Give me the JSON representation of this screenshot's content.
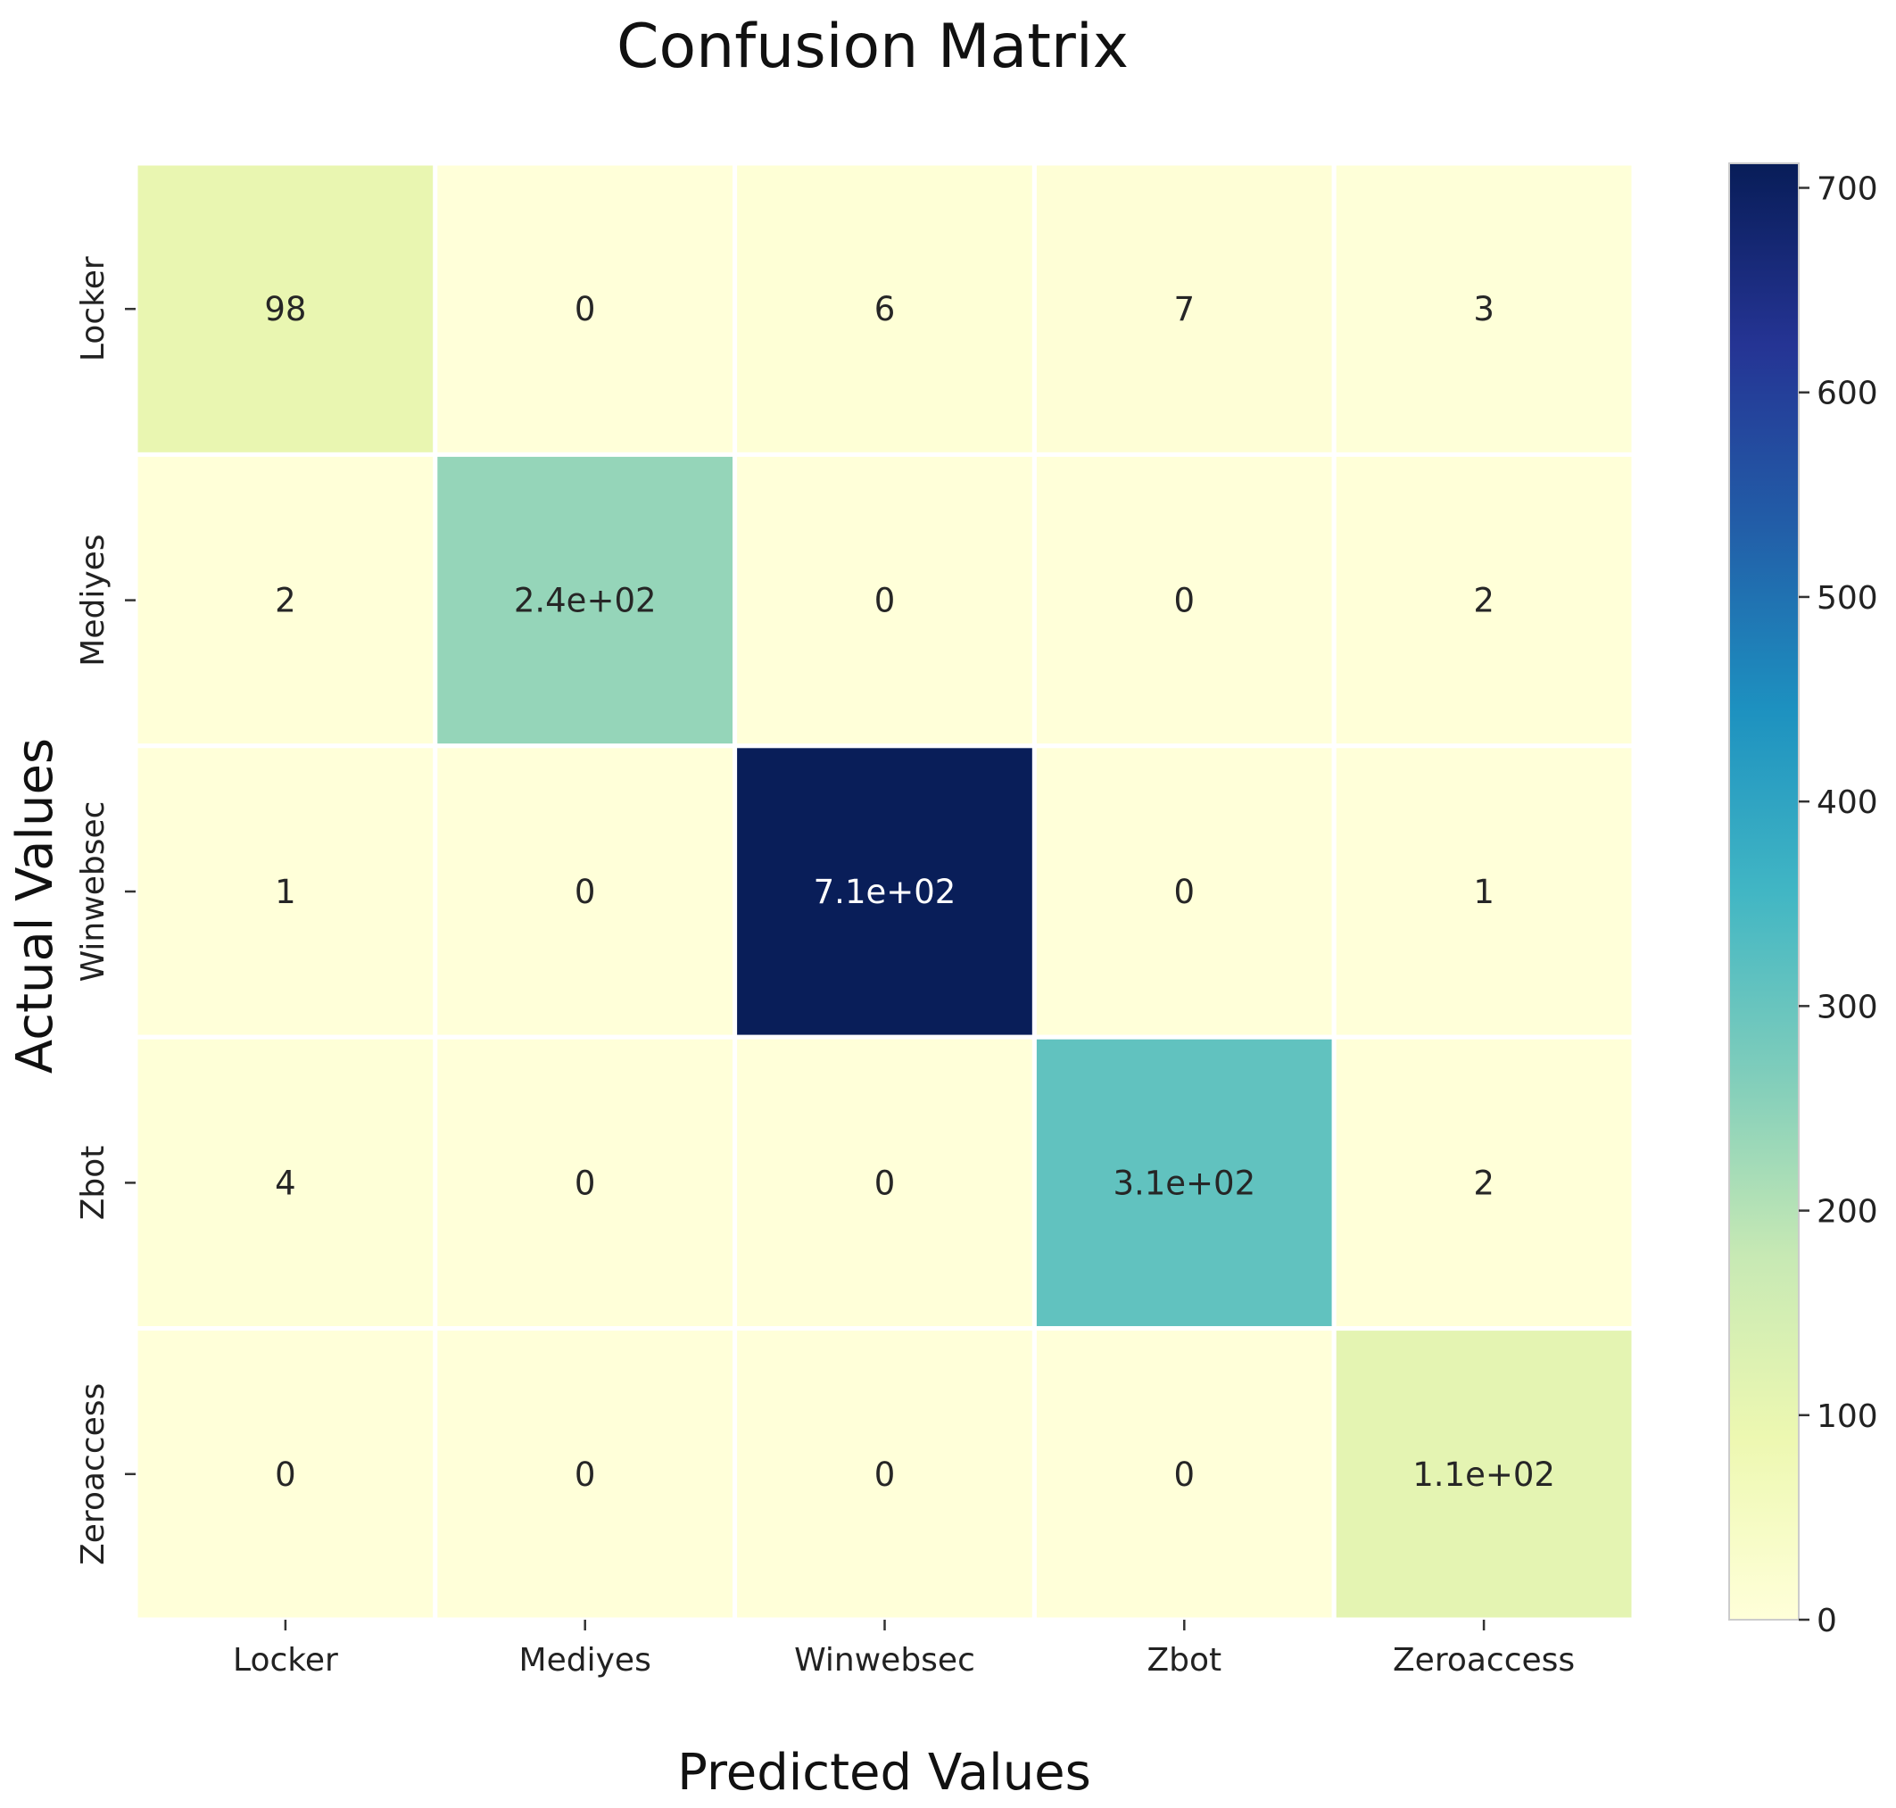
{
  "chart_data": {
    "type": "heatmap",
    "title": "Confusion Matrix",
    "xlabel": "Predicted Values",
    "ylabel": "Actual Values",
    "x_categories": [
      "Locker",
      "Mediyes",
      "Winwebsec",
      "Zbot",
      "Zeroaccess"
    ],
    "y_categories": [
      "Locker",
      "Mediyes",
      "Winwebsec",
      "Zbot",
      "Zeroaccess"
    ],
    "values": [
      [
        98,
        0,
        6,
        7,
        3
      ],
      [
        2,
        240,
        0,
        0,
        2
      ],
      [
        1,
        0,
        710,
        0,
        1
      ],
      [
        4,
        0,
        0,
        310,
        2
      ],
      [
        0,
        0,
        0,
        0,
        110
      ]
    ],
    "cell_labels": [
      [
        "98",
        "0",
        "6",
        "7",
        "3"
      ],
      [
        "2",
        "2.4e+02",
        "0",
        "0",
        "2"
      ],
      [
        "1",
        "0",
        "7.1e+02",
        "0",
        "1"
      ],
      [
        "4",
        "0",
        "0",
        "3.1e+02",
        "2"
      ],
      [
        "0",
        "0",
        "0",
        "0",
        "1.1e+02"
      ]
    ],
    "colormap": "YlGnBu",
    "colorbar": {
      "range": [
        0,
        712
      ],
      "ticks": [
        0,
        100,
        200,
        300,
        400,
        500,
        600,
        700
      ],
      "tick_labels": [
        "0",
        "100",
        "200",
        "300",
        "400",
        "500",
        "600",
        "700"
      ]
    },
    "colormap_stops": [
      "#ffffd9",
      "#edf8b1",
      "#c7e9b4",
      "#7fcdbb",
      "#41b6c4",
      "#1d91c0",
      "#225ea8",
      "#253494",
      "#081d58"
    ],
    "cell_border_color": "#ffffff",
    "annotation_colors": {
      "dark_text": "#262626",
      "light_text": "#ffffff"
    }
  }
}
